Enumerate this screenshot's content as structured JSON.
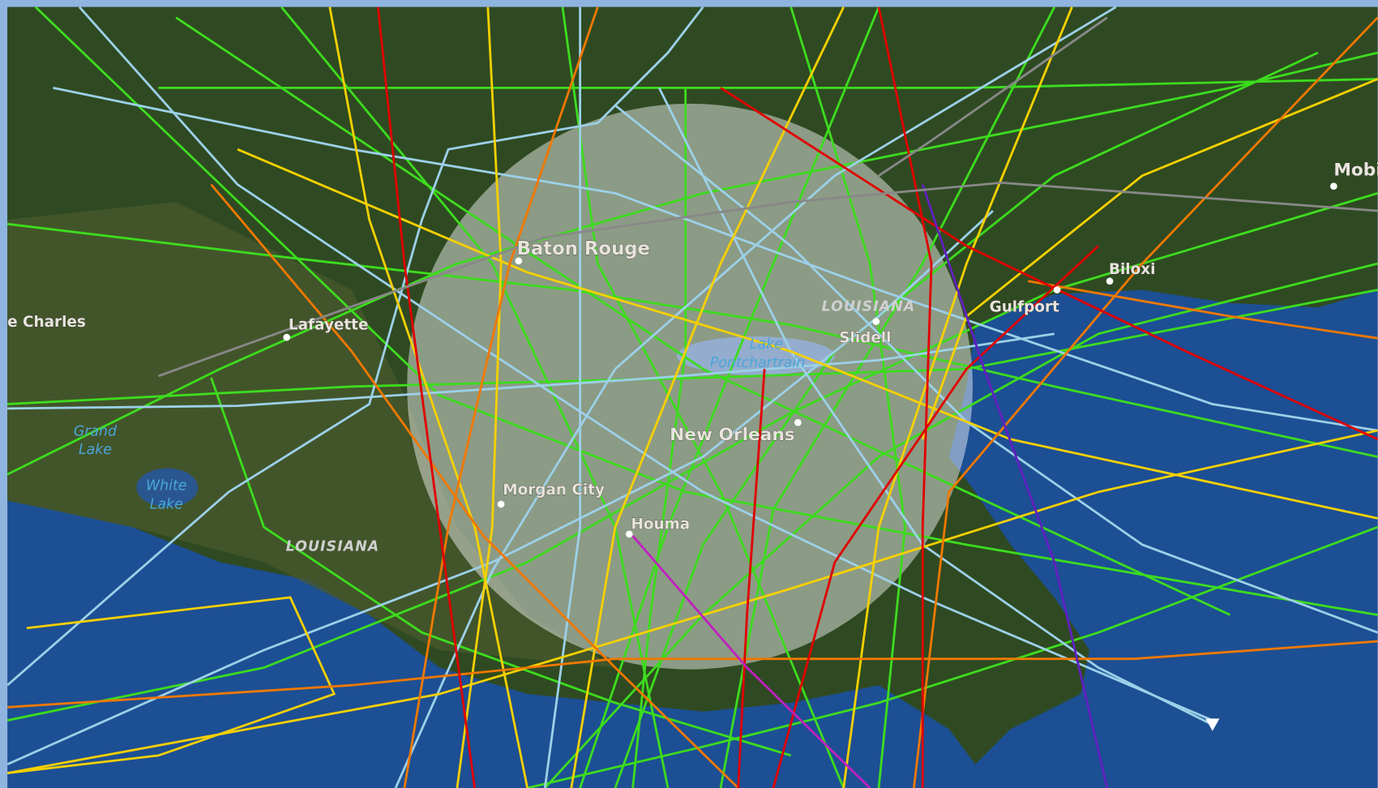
{
  "places": [
    "e Charles",
    "Lafayette",
    "Baton Rouge",
    "LOUISIANA",
    "Slidell",
    "New Orleans",
    "Morgan City",
    "Houma",
    "Gulfport",
    "Biloxi",
    "Mobi",
    "LOUISIANA"
  ],
  "lakes": [
    [
      "Grand",
      "Lake"
    ],
    [
      "White",
      "Lake"
    ],
    [
      "Lake",
      "Pontchartrain"
    ]
  ]
}
